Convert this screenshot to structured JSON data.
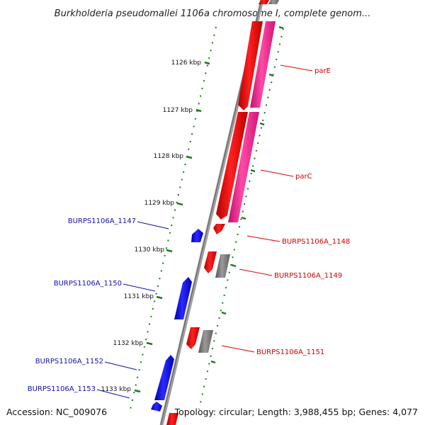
{
  "title": "Burkholderia pseudomallei 1106a chromosome I, complete genom...",
  "accession": "Accession: NC_009076",
  "summary": "Topology: circular; Length: 3,988,455 bp; Genes: 4,077",
  "ruler_ticks": [
    "1126 kbp",
    "1127 kbp",
    "1128 kbp",
    "1129 kbp",
    "1130 kbp",
    "1131 kbp",
    "1132 kbp",
    "1133 kbp"
  ],
  "genes_forward": [
    {
      "name": "parE",
      "color": "#e00000"
    },
    {
      "name": "parC",
      "color": "#e00000"
    },
    {
      "name": "BURPS1106A_1148",
      "color": "#e00000"
    },
    {
      "name": "BURPS1106A_1149",
      "color": "#e00000"
    },
    {
      "name": "BURPS1106A_1151",
      "color": "#e00000"
    }
  ],
  "genes_reverse": [
    {
      "name": "BURPS1106A_1147",
      "color": "#0000cc"
    },
    {
      "name": "BURPS1106A_1150",
      "color": "#0000cc"
    },
    {
      "name": "BURPS1106A_1152",
      "color": "#0000cc"
    },
    {
      "name": "BURPS1106A_1153",
      "color": "#0000cc"
    }
  ],
  "colors": {
    "forward_cds": "#ff0000",
    "forward_rna": "#ff1493",
    "reverse_cds": "#0000ff",
    "neutral": "#808080",
    "tick_green": "#1a7a1a",
    "backbone": "#8a8a8a"
  }
}
